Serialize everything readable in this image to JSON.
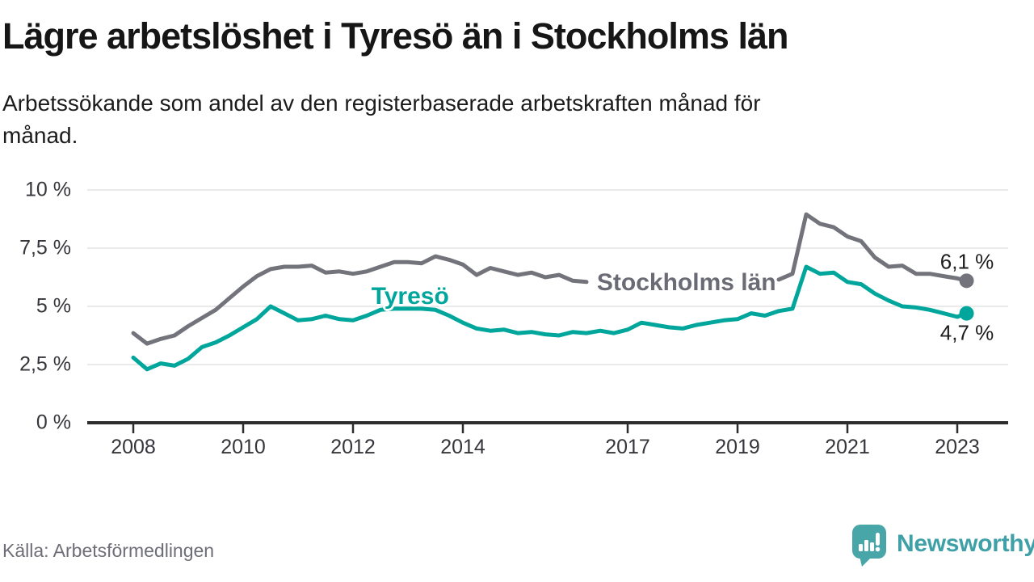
{
  "header": {
    "title": "Lägre arbetslöshet i Tyresö än i Stockholms län",
    "subtitle": "Arbetssökande som andel av den registerbaserade arbetskraften månad för\nmånad."
  },
  "footer": {
    "source": "Källa: Arbetsförmedlingen",
    "brand": "Newsworthy"
  },
  "colors": {
    "background": "#ffffff",
    "gridline": "#e3e3e3",
    "axis": "#2d2d2d",
    "tick_text": "#35353b",
    "end_label_text": "#1e1e1e",
    "tyreso": "#00a69b",
    "stockholm_line": "#73737c",
    "stockholm_label": "#6b6b75",
    "brand_icon": "#48a5a8",
    "brand_text": "#3fa1a7"
  },
  "chart_data": {
    "type": "line",
    "title": "Lägre arbetslöshet i Tyresö än i Stockholms län",
    "x_unit": "decimal-year (monthly series)",
    "grid": true,
    "legend_position": "inline-labels",
    "ylim": [
      0,
      10.3
    ],
    "xlim": [
      2007.2,
      2023.9
    ],
    "y_ticks": [
      {
        "value": 0,
        "label": "0 %"
      },
      {
        "value": 2.5,
        "label": "2,5 %"
      },
      {
        "value": 5,
        "label": "5 %"
      },
      {
        "value": 7.5,
        "label": "7,5 %"
      },
      {
        "value": 10,
        "label": "10 %"
      }
    ],
    "x_ticks": [
      {
        "value": 2008,
        "label": "2008"
      },
      {
        "value": 2010,
        "label": "2010"
      },
      {
        "value": 2012,
        "label": "2012"
      },
      {
        "value": 2014,
        "label": "2014"
      },
      {
        "value": 2017,
        "label": "2017"
      },
      {
        "value": 2019,
        "label": "2019"
      },
      {
        "value": 2021,
        "label": "2021"
      },
      {
        "value": 2023,
        "label": "2023"
      }
    ],
    "series": [
      {
        "id": "stockholm",
        "name": "Stockholms län",
        "color": "#73737c",
        "label_color": "#6b6b75",
        "line_label": {
          "text": "Stockholms län",
          "x": 2018.07,
          "y": 6.0
        },
        "end_dot_label": {
          "text": "6,1 %",
          "position": "above"
        },
        "end_value": 6.1,
        "gap_x": [
          2016.3,
          2019.74
        ],
        "x": [
          2008,
          2008.25,
          2008.5,
          2008.75,
          2009,
          2009.25,
          2009.5,
          2009.75,
          2010,
          2010.25,
          2010.5,
          2010.75,
          2011,
          2011.25,
          2011.5,
          2011.75,
          2012,
          2012.25,
          2012.5,
          2012.75,
          2013,
          2013.25,
          2013.5,
          2013.75,
          2014,
          2014.25,
          2014.5,
          2014.75,
          2015,
          2015.25,
          2015.5,
          2015.75,
          2016,
          2016.25,
          2016.5,
          2016.75,
          2017,
          2017.25,
          2017.5,
          2017.75,
          2018,
          2018.25,
          2018.5,
          2018.75,
          2019,
          2019.25,
          2019.5,
          2019.75,
          2020,
          2020.25,
          2020.5,
          2020.75,
          2021,
          2021.25,
          2021.5,
          2021.75,
          2022,
          2022.25,
          2022.5,
          2022.75,
          2023,
          2023.17
        ],
        "values": [
          3.85,
          3.4,
          3.6,
          3.75,
          4.15,
          4.5,
          4.85,
          5.35,
          5.85,
          6.3,
          6.6,
          6.7,
          6.7,
          6.75,
          6.45,
          6.5,
          6.4,
          6.5,
          6.7,
          6.9,
          6.9,
          6.85,
          7.15,
          7.0,
          6.8,
          6.35,
          6.65,
          6.5,
          6.35,
          6.45,
          6.25,
          6.35,
          6.1,
          6.05,
          6.05,
          6.1,
          6.15,
          6.2,
          6.15,
          6.1,
          6.05,
          6.0,
          6.0,
          6.05,
          6.05,
          6.1,
          6.1,
          6.15,
          6.4,
          8.95,
          8.55,
          8.4,
          8.0,
          7.8,
          7.1,
          6.7,
          6.75,
          6.4,
          6.4,
          6.3,
          6.2,
          6.1
        ]
      },
      {
        "id": "tyreso",
        "name": "Tyresö",
        "color": "#00a69b",
        "label_color": "#00a69b",
        "line_label": {
          "text": "Tyresö",
          "x": 2013.04,
          "y": 5.42
        },
        "end_dot_label": {
          "text": "4,7 %",
          "position": "below"
        },
        "end_value": 4.7,
        "x": [
          2008,
          2008.25,
          2008.5,
          2008.75,
          2009,
          2009.25,
          2009.5,
          2009.75,
          2010,
          2010.25,
          2010.5,
          2010.75,
          2011,
          2011.25,
          2011.5,
          2011.75,
          2012,
          2012.25,
          2012.5,
          2012.75,
          2013,
          2013.25,
          2013.5,
          2013.75,
          2014,
          2014.25,
          2014.5,
          2014.75,
          2015,
          2015.25,
          2015.5,
          2015.75,
          2016,
          2016.25,
          2016.5,
          2016.75,
          2017,
          2017.25,
          2017.5,
          2017.75,
          2018,
          2018.25,
          2018.5,
          2018.75,
          2019,
          2019.25,
          2019.5,
          2019.75,
          2020,
          2020.25,
          2020.5,
          2020.75,
          2021,
          2021.25,
          2021.5,
          2021.75,
          2022,
          2022.25,
          2022.5,
          2022.75,
          2023,
          2023.17
        ],
        "values": [
          2.8,
          2.3,
          2.55,
          2.45,
          2.75,
          3.25,
          3.45,
          3.75,
          4.1,
          4.45,
          5.0,
          4.7,
          4.4,
          4.45,
          4.6,
          4.45,
          4.4,
          4.6,
          4.85,
          4.9,
          4.9,
          4.9,
          4.85,
          4.6,
          4.3,
          4.05,
          3.95,
          4.0,
          3.85,
          3.9,
          3.8,
          3.75,
          3.9,
          3.85,
          3.95,
          3.85,
          4.0,
          4.3,
          4.2,
          4.1,
          4.05,
          4.2,
          4.3,
          4.4,
          4.45,
          4.7,
          4.6,
          4.8,
          4.9,
          6.7,
          6.4,
          6.45,
          6.05,
          5.95,
          5.55,
          5.25,
          5.0,
          4.95,
          4.85,
          4.7,
          4.55,
          4.7
        ]
      }
    ]
  }
}
